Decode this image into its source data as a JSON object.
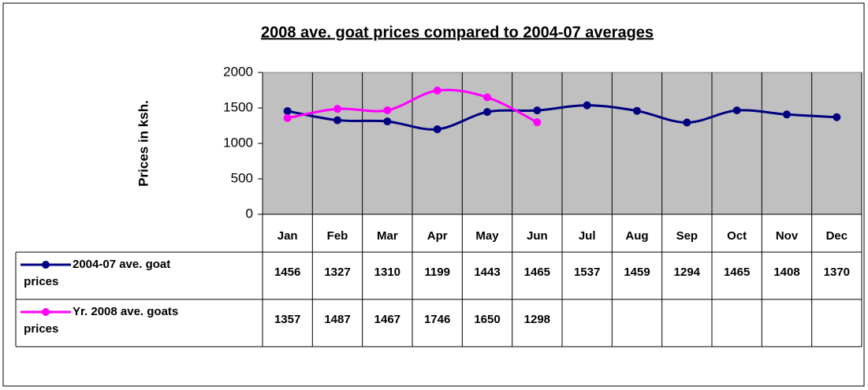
{
  "chart_data": {
    "type": "line",
    "title": "2008 ave. goat prices compared to 2004-07 averages",
    "y_label": "Prices in ksh.",
    "categories": [
      "Jan",
      "Feb",
      "Mar",
      "Apr",
      "May",
      "Jun",
      "Jul",
      "Aug",
      "Sep",
      "Oct",
      "Nov",
      "Dec"
    ],
    "series": [
      {
        "name": "2004-07 ave. goat prices",
        "color": "#000080",
        "values": [
          1456,
          1327,
          1310,
          1199,
          1443,
          1465,
          1537,
          1459,
          1294,
          1465,
          1408,
          1370
        ]
      },
      {
        "name": "Yr. 2008 ave. goats prices",
        "color": "#ff00ff",
        "values": [
          1357,
          1487,
          1467,
          1746,
          1650,
          1298,
          null,
          null,
          null,
          null,
          null,
          null
        ]
      }
    ],
    "ylim": [
      0,
      2000
    ],
    "yticks": [
      0,
      500,
      1000,
      1500,
      2000
    ],
    "grid": false
  }
}
